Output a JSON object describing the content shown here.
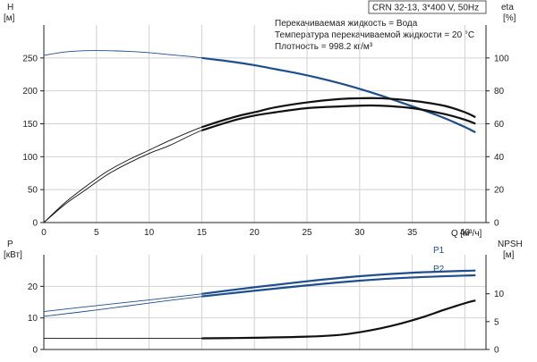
{
  "title": "CRN 32-13, 3*400 V, 50Hz",
  "info_lines": [
    "Перекачиваемая жидкость = Вода",
    "Температура перекачиваемой жидкости = 20 °C",
    "Плотность = 998.2 кг/м³"
  ],
  "colors": {
    "blue": "#1f4e8c",
    "black": "#111111",
    "grid": "#d2d2d2",
    "axis": "#222222"
  },
  "chart_data": [
    {
      "type": "line",
      "xlabel": "Q [м³/ч]",
      "xlim": [
        0,
        42
      ],
      "xticks": [
        0,
        5,
        10,
        15,
        20,
        25,
        30,
        35,
        40
      ],
      "grid": true,
      "left_axis": {
        "label": "H",
        "unit": "[м]",
        "lim": [
          0,
          300
        ],
        "ticks": [
          0,
          50,
          100,
          150,
          200,
          250
        ]
      },
      "right_axis": {
        "label": "eta",
        "unit": "[%]",
        "lim": [
          0,
          120
        ],
        "ticks": [
          0,
          20,
          40,
          60,
          80,
          100
        ]
      },
      "series": [
        {
          "axis": "left",
          "color": "blue",
          "operating_from": 15,
          "x": [
            0,
            2,
            4,
            6,
            8,
            10,
            12,
            14,
            15,
            16,
            18,
            20,
            22,
            24,
            26,
            28,
            30,
            32,
            34,
            36,
            38,
            40,
            41
          ],
          "y": [
            254,
            259,
            261,
            261,
            260,
            258,
            255,
            252,
            250,
            248,
            244,
            239,
            233,
            227,
            220,
            212,
            203,
            193,
            182,
            171,
            159,
            145,
            137
          ]
        },
        {
          "axis": "right",
          "color": "black",
          "operating_from": 15,
          "x": [
            0,
            2,
            4,
            6,
            8,
            10,
            12,
            15,
            18,
            20,
            22,
            25,
            28,
            30,
            32,
            35,
            38,
            40,
            41
          ],
          "y": [
            0,
            12,
            22,
            31,
            38,
            44,
            50,
            58,
            64,
            67,
            70,
            73,
            75,
            75.5,
            75.5,
            74,
            71,
            67,
            64
          ]
        },
        {
          "axis": "right",
          "color": "black",
          "operating_from": 15,
          "x": [
            0,
            2,
            4,
            6,
            8,
            10,
            12,
            15,
            18,
            20,
            22,
            25,
            28,
            30,
            32,
            35,
            38,
            40,
            41
          ],
          "y": [
            0,
            11,
            20,
            29,
            36,
            42,
            47,
            56,
            62,
            65,
            67,
            69.5,
            70.5,
            71,
            71,
            69.5,
            66,
            62.5,
            60
          ]
        }
      ]
    },
    {
      "type": "line",
      "xlim": [
        0,
        42
      ],
      "xticks": [
        0,
        5,
        10,
        15,
        20,
        25,
        30,
        35,
        40
      ],
      "grid": true,
      "left_axis": {
        "label": "P",
        "unit": "[кВт]",
        "lim": [
          0,
          30
        ],
        "ticks": [
          0,
          10,
          20
        ]
      },
      "right_axis": {
        "label": "NPSH",
        "unit": "[м]",
        "lim": [
          0,
          17
        ],
        "ticks": [
          0,
          5,
          10
        ]
      },
      "series": [
        {
          "name": "P1",
          "axis": "left",
          "color": "blue",
          "operating_from": 15,
          "x": [
            0,
            5,
            10,
            15,
            20,
            25,
            30,
            35,
            40,
            41
          ],
          "y": [
            12.0,
            13.9,
            15.7,
            17.6,
            19.7,
            21.6,
            23.2,
            24.3,
            24.9,
            25.0
          ]
        },
        {
          "name": "P2",
          "axis": "left",
          "color": "blue",
          "operating_from": 15,
          "x": [
            0,
            5,
            10,
            15,
            20,
            25,
            30,
            35,
            40,
            41
          ],
          "y": [
            10.5,
            12.5,
            14.7,
            16.8,
            18.6,
            20.3,
            21.8,
            22.8,
            23.4,
            23.5
          ]
        },
        {
          "axis": "right",
          "color": "black",
          "operating_from": 15,
          "x": [
            0,
            5,
            10,
            15,
            20,
            25,
            28,
            30,
            32,
            34,
            36,
            38,
            40,
            41
          ],
          "y": [
            2.0,
            2.0,
            2.0,
            2.0,
            2.1,
            2.3,
            2.6,
            3.1,
            3.8,
            4.7,
            5.8,
            7.1,
            8.3,
            8.8
          ]
        }
      ]
    }
  ]
}
